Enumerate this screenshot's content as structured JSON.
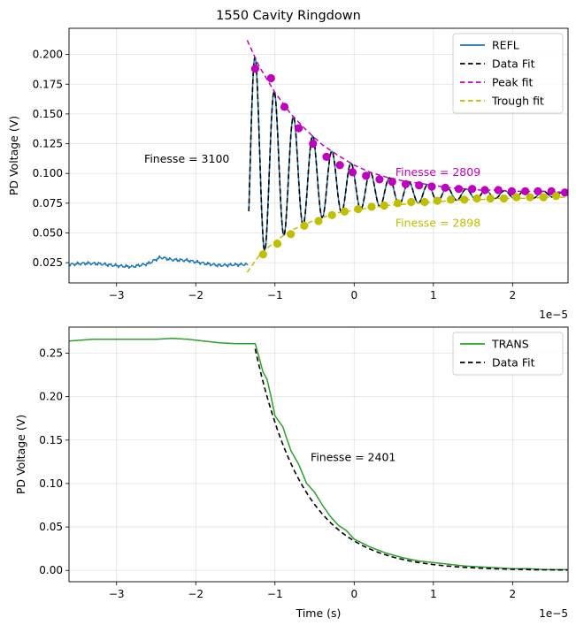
{
  "chart_data": [
    {
      "type": "line",
      "title": "1550 Cavity Ringdown",
      "xlabel": "",
      "ylabel": "PD Voltage (V)",
      "x_offset_label": "1e−5",
      "xlim": [
        -3.6,
        2.7
      ],
      "ylim": [
        0.008,
        0.222
      ],
      "xticks": [
        -3,
        -2,
        -1,
        0,
        1,
        2
      ],
      "xtick_labels": [
        "−3",
        "−2",
        "−1",
        "0",
        "1",
        "2"
      ],
      "yticks": [
        0.025,
        0.05,
        0.075,
        0.1,
        0.125,
        0.15,
        0.175,
        0.2
      ],
      "ytick_labels": [
        "0.025",
        "0.050",
        "0.075",
        "0.100",
        "0.125",
        "0.150",
        "0.175",
        "0.200"
      ],
      "grid": true,
      "legend_position": "top-right",
      "legend": [
        {
          "label": "REFL",
          "color": "#1f77b4",
          "style": "solid"
        },
        {
          "label": "Data Fit",
          "color": "#000000",
          "style": "dashed"
        },
        {
          "label": "Peak fit",
          "color": "#c000c0",
          "style": "dashed"
        },
        {
          "label": "Trough fit",
          "color": "#bfbf00",
          "style": "dashed"
        }
      ],
      "annotations": [
        {
          "text": "Finesse = 3100",
          "x": -2.65,
          "y": 0.112,
          "color": "#000000"
        },
        {
          "text": "Finesse = 2809",
          "x": 0.52,
          "y": 0.101,
          "color": "#c000c0"
        },
        {
          "text": "Finesse = 2898",
          "x": 0.52,
          "y": 0.058,
          "color": "#bfbf00"
        }
      ],
      "series": [
        {
          "name": "REFL",
          "color": "#1f77b4",
          "baseline_segments": [
            {
              "x": [
                -3.6,
                -3.4,
                -3.2,
                -3.0,
                -2.8,
                -2.6,
                -2.45,
                -2.3,
                -2.1,
                -1.9,
                -1.7,
                -1.5,
                -1.35
              ],
              "y": [
                0.023,
                0.024,
                0.024,
                0.023,
                0.022,
                0.024,
                0.029,
                0.027,
                0.027,
                0.025,
                0.023,
                0.023,
                0.023
              ]
            }
          ]
        },
        {
          "name": "Data Fit",
          "color": "#000000",
          "ringdown": {
            "x_start": -1.33,
            "x_end": 2.7,
            "period": 0.2425,
            "fit_start": -1.33
          }
        },
        {
          "name": "Peak fit",
          "color": "#c000c0",
          "x": [
            -1.35,
            -1.2,
            -1.0,
            -0.8,
            -0.6,
            -0.4,
            -0.2,
            0.0,
            0.2,
            0.4,
            0.6,
            0.8,
            1.0,
            1.2,
            1.4,
            1.6,
            1.8,
            2.0,
            2.2,
            2.4,
            2.7
          ],
          "y": [
            0.212,
            0.19,
            0.168,
            0.15,
            0.136,
            0.124,
            0.115,
            0.107,
            0.101,
            0.097,
            0.094,
            0.092,
            0.09,
            0.088,
            0.087,
            0.086,
            0.086,
            0.085,
            0.085,
            0.085,
            0.084
          ]
        },
        {
          "name": "Trough fit",
          "color": "#bfbf00",
          "x": [
            -1.35,
            -1.2,
            -1.0,
            -0.8,
            -0.6,
            -0.4,
            -0.2,
            0.0,
            0.2,
            0.4,
            0.6,
            0.8,
            1.0,
            1.2,
            1.4,
            1.6,
            1.8,
            2.0,
            2.2,
            2.4,
            2.7
          ],
          "y": [
            0.017,
            0.031,
            0.043,
            0.052,
            0.058,
            0.063,
            0.067,
            0.069,
            0.071,
            0.073,
            0.074,
            0.075,
            0.076,
            0.077,
            0.078,
            0.078,
            0.079,
            0.079,
            0.079,
            0.08,
            0.08
          ]
        },
        {
          "name": "Peak points",
          "color": "#c000c0",
          "marker": true,
          "x": [
            -1.25,
            -1.05,
            -0.88,
            -0.7,
            -0.52,
            -0.35,
            -0.18,
            -0.02,
            0.15,
            0.32,
            0.48,
            0.65,
            0.82,
            0.98,
            1.15,
            1.32,
            1.49,
            1.65,
            1.82,
            1.99,
            2.16,
            2.32,
            2.49,
            2.66
          ],
          "y": [
            0.188,
            0.18,
            0.156,
            0.138,
            0.125,
            0.114,
            0.107,
            0.101,
            0.098,
            0.095,
            0.093,
            0.091,
            0.09,
            0.089,
            0.088,
            0.087,
            0.087,
            0.086,
            0.086,
            0.085,
            0.085,
            0.085,
            0.085,
            0.084
          ]
        },
        {
          "name": "Trough points",
          "color": "#bfbf00",
          "marker": true,
          "x": [
            -1.15,
            -0.97,
            -0.8,
            -0.63,
            -0.45,
            -0.28,
            -0.12,
            0.05,
            0.22,
            0.38,
            0.55,
            0.72,
            0.89,
            1.05,
            1.22,
            1.39,
            1.55,
            1.72,
            1.89,
            2.05,
            2.22,
            2.39,
            2.55
          ],
          "y": [
            0.032,
            0.041,
            0.049,
            0.056,
            0.06,
            0.065,
            0.068,
            0.07,
            0.072,
            0.073,
            0.075,
            0.076,
            0.076,
            0.077,
            0.078,
            0.078,
            0.079,
            0.079,
            0.079,
            0.08,
            0.08,
            0.08,
            0.081
          ]
        }
      ]
    },
    {
      "type": "line",
      "title": "",
      "xlabel": "Time (s)",
      "ylabel": "PD Voltage (V)",
      "x_offset_label": "1e−5",
      "xlim": [
        -3.6,
        2.7
      ],
      "ylim": [
        -0.013,
        0.28
      ],
      "xticks": [
        -3,
        -2,
        -1,
        0,
        1,
        2
      ],
      "xtick_labels": [
        "−3",
        "−2",
        "−1",
        "0",
        "1",
        "2"
      ],
      "yticks": [
        0.0,
        0.05,
        0.1,
        0.15,
        0.2,
        0.25
      ],
      "ytick_labels": [
        "0.00",
        "0.05",
        "0.10",
        "0.15",
        "0.20",
        "0.25"
      ],
      "grid": true,
      "legend_position": "top-right",
      "legend": [
        {
          "label": "TRANS",
          "color": "#2ca02c",
          "style": "solid"
        },
        {
          "label": "Data Fit",
          "color": "#000000",
          "style": "dashed"
        }
      ],
      "annotations": [
        {
          "text": "Finesse = 2401",
          "x": -0.55,
          "y": 0.13,
          "color": "#000000"
        }
      ],
      "series": [
        {
          "name": "TRANS",
          "color": "#2ca02c",
          "x": [
            -3.6,
            -3.3,
            -3.0,
            -2.7,
            -2.5,
            -2.3,
            -2.1,
            -1.9,
            -1.7,
            -1.5,
            -1.25,
            -1.2,
            -1.15,
            -1.1,
            -1.05,
            -1.0,
            -0.9,
            -0.8,
            -0.7,
            -0.6,
            -0.5,
            -0.4,
            -0.3,
            -0.2,
            -0.1,
            0.0,
            0.2,
            0.4,
            0.6,
            0.8,
            1.0,
            1.2,
            1.4,
            1.6,
            1.8,
            2.0,
            2.2,
            2.4,
            2.7
          ],
          "y": [
            0.264,
            0.266,
            0.266,
            0.266,
            0.266,
            0.267,
            0.266,
            0.264,
            0.262,
            0.261,
            0.261,
            0.245,
            0.228,
            0.22,
            0.2,
            0.178,
            0.165,
            0.138,
            0.122,
            0.1,
            0.09,
            0.075,
            0.062,
            0.052,
            0.046,
            0.036,
            0.027,
            0.02,
            0.015,
            0.011,
            0.009,
            0.007,
            0.005,
            0.004,
            0.003,
            0.002,
            0.002,
            0.001,
            0.001
          ]
        },
        {
          "name": "Data Fit",
          "color": "#000000",
          "fit": {
            "x_start": -1.25,
            "x_end": 2.7,
            "a": 0.255,
            "tau": 0.62
          }
        }
      ]
    }
  ]
}
